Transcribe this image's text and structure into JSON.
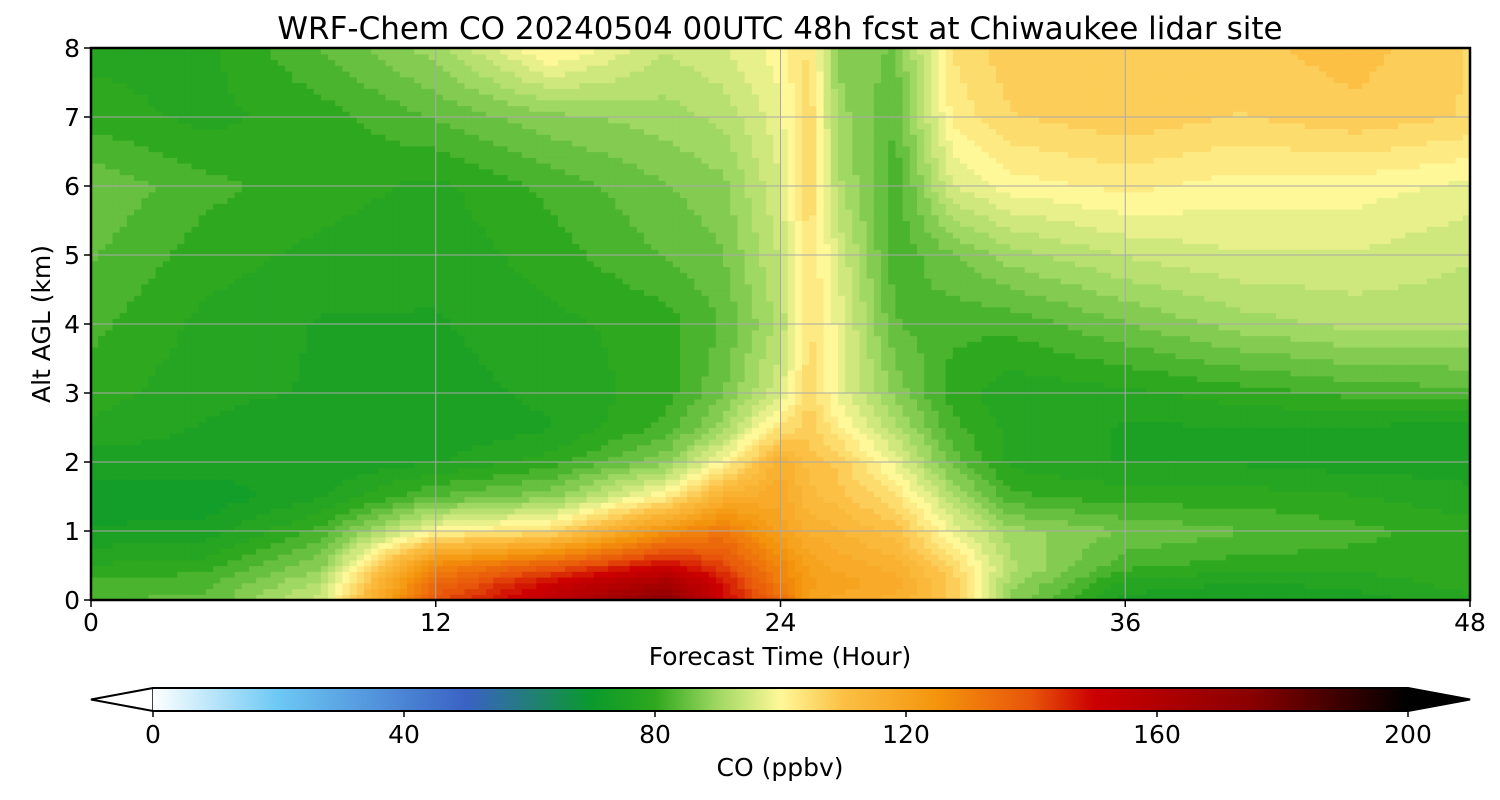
{
  "chart_data": {
    "type": "heatmap",
    "subtype": "filled-contour",
    "title": "WRF-Chem CO  20240504 00UTC 48h fcst at Chiwaukee lidar site",
    "xlabel": "Forecast Time (Hour)",
    "ylabel": "Alt AGL (km)",
    "xlim": [
      0,
      48
    ],
    "ylim": [
      0,
      8
    ],
    "x_ticks": [
      0,
      12,
      24,
      36,
      48
    ],
    "y_ticks": [
      0,
      1,
      2,
      3,
      4,
      5,
      6,
      7,
      8
    ],
    "grid": true,
    "colorbar": {
      "label": "CO  (ppbv)",
      "range": [
        0,
        200
      ],
      "ticks": [
        0,
        40,
        80,
        120,
        160,
        200
      ],
      "extend": "both",
      "stops": [
        {
          "v": 0,
          "c": "#ffffff"
        },
        {
          "v": 20,
          "c": "#6cc8f4"
        },
        {
          "v": 50,
          "c": "#3a62c4"
        },
        {
          "v": 70,
          "c": "#0a9a2c"
        },
        {
          "v": 80,
          "c": "#2ea81e"
        },
        {
          "v": 90,
          "c": "#9fd862"
        },
        {
          "v": 100,
          "c": "#fff898"
        },
        {
          "v": 110,
          "c": "#fbc044"
        },
        {
          "v": 125,
          "c": "#f4940c"
        },
        {
          "v": 140,
          "c": "#e8540a"
        },
        {
          "v": 150,
          "c": "#cc0000"
        },
        {
          "v": 175,
          "c": "#8a0000"
        },
        {
          "v": 200,
          "c": "#000000"
        }
      ]
    },
    "field": {
      "x": [
        0,
        4,
        8,
        12,
        16,
        20,
        22,
        24,
        25,
        26,
        28,
        30,
        32,
        36,
        40,
        44,
        48
      ],
      "y": [
        0,
        0.25,
        0.5,
        1,
        1.5,
        2,
        2.5,
        3,
        4,
        5,
        6,
        7,
        8
      ],
      "z": [
        [
          84,
          84,
          95,
          140,
          155,
          175,
          150,
          135,
          120,
          118,
          115,
          108,
          88,
          75,
          74,
          75,
          78
        ],
        [
          82,
          83,
          92,
          135,
          150,
          165,
          148,
          130,
          122,
          120,
          118,
          108,
          90,
          78,
          76,
          77,
          80
        ],
        [
          79,
          80,
          88,
          128,
          138,
          150,
          142,
          128,
          120,
          118,
          115,
          106,
          92,
          82,
          80,
          80,
          80
        ],
        [
          74,
          75,
          82,
          100,
          105,
          125,
          132,
          120,
          116,
          114,
          110,
          98,
          90,
          86,
          84,
          82,
          80
        ],
        [
          72,
          72,
          76,
          84,
          88,
          102,
          115,
          118,
          112,
          110,
          104,
          92,
          82,
          80,
          80,
          79,
          77
        ],
        [
          75,
          75,
          74,
          76,
          80,
          88,
          100,
          116,
          110,
          108,
          98,
          85,
          78,
          76,
          76,
          75,
          75
        ],
        [
          78,
          76,
          74,
          74,
          76,
          82,
          90,
          104,
          108,
          102,
          92,
          82,
          78,
          76,
          76,
          76,
          75
        ],
        [
          80,
          77,
          76,
          75,
          77,
          80,
          86,
          96,
          106,
          98,
          88,
          80,
          77,
          78,
          80,
          82,
          83
        ],
        [
          82,
          78,
          76,
          76,
          78,
          80,
          84,
          92,
          104,
          98,
          84,
          82,
          82,
          86,
          90,
          92,
          92
        ],
        [
          84,
          80,
          78,
          77,
          80,
          84,
          86,
          94,
          104,
          96,
          82,
          86,
          90,
          94,
          96,
          96,
          94
        ],
        [
          86,
          82,
          80,
          78,
          82,
          86,
          88,
          96,
          106,
          92,
          82,
          96,
          100,
          102,
          100,
          100,
          98
        ],
        [
          80,
          78,
          80,
          84,
          88,
          90,
          92,
          98,
          106,
          90,
          84,
          102,
          106,
          108,
          106,
          108,
          106
        ],
        [
          78,
          78,
          84,
          90,
          102,
          94,
          96,
          100,
          104,
          88,
          86,
          104,
          108,
          108,
          108,
          110,
          106
        ]
      ]
    }
  }
}
